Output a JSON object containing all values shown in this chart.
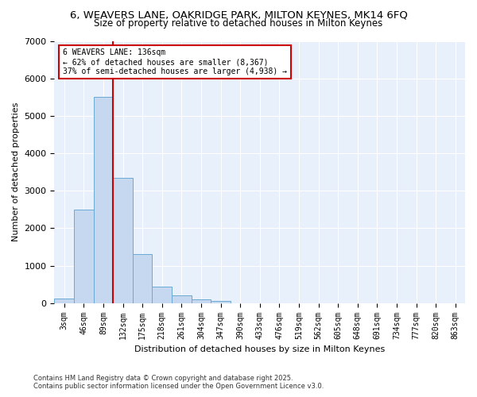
{
  "title_line1": "6, WEAVERS LANE, OAKRIDGE PARK, MILTON KEYNES, MK14 6FQ",
  "title_line2": "Size of property relative to detached houses in Milton Keynes",
  "xlabel": "Distribution of detached houses by size in Milton Keynes",
  "ylabel": "Number of detached properties",
  "categories": [
    "3sqm",
    "46sqm",
    "89sqm",
    "132sqm",
    "175sqm",
    "218sqm",
    "261sqm",
    "304sqm",
    "347sqm",
    "390sqm",
    "433sqm",
    "476sqm",
    "519sqm",
    "562sqm",
    "605sqm",
    "648sqm",
    "691sqm",
    "734sqm",
    "777sqm",
    "820sqm",
    "863sqm"
  ],
  "values": [
    120,
    2500,
    5500,
    3350,
    1300,
    430,
    210,
    90,
    50,
    0,
    0,
    0,
    0,
    0,
    0,
    0,
    0,
    0,
    0,
    0,
    0
  ],
  "bar_color": "#c5d8f0",
  "bar_edge_color": "#6aaad4",
  "vline_color": "#cc0000",
  "annotation_text": "6 WEAVERS LANE: 136sqm\n← 62% of detached houses are smaller (8,367)\n37% of semi-detached houses are larger (4,938) →",
  "annotation_box_color": "#ffffff",
  "annotation_box_edge_color": "#cc0000",
  "ylim": [
    0,
    7000
  ],
  "yticks": [
    0,
    1000,
    2000,
    3000,
    4000,
    5000,
    6000,
    7000
  ],
  "footer_line1": "Contains HM Land Registry data © Crown copyright and database right 2025.",
  "footer_line2": "Contains public sector information licensed under the Open Government Licence v3.0.",
  "background_color": "#ffffff",
  "plot_bg_color": "#e8f0fb",
  "grid_color": "#ffffff",
  "title_fontsize": 9.5,
  "subtitle_fontsize": 8.5,
  "tick_fontsize": 7,
  "label_fontsize": 8,
  "footer_fontsize": 6
}
